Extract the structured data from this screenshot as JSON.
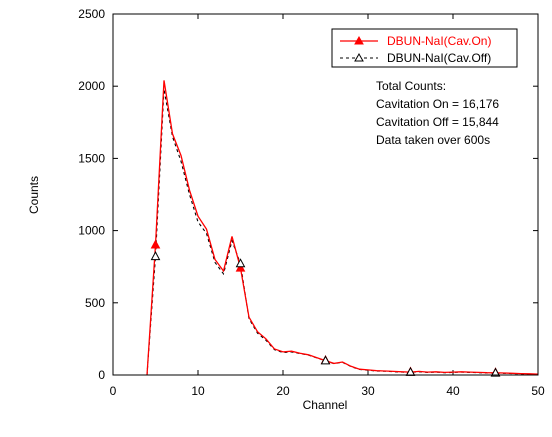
{
  "chart_data": {
    "type": "line",
    "title": "",
    "xlabel": "Channel",
    "ylabel": "Counts",
    "xlim": [
      0,
      50
    ],
    "ylim": [
      0,
      2500
    ],
    "xticks": [
      "0",
      "10",
      "20",
      "30",
      "40",
      "50"
    ],
    "yticks": [
      "0",
      "500",
      "1000",
      "1500",
      "2000",
      "2500"
    ],
    "grid": false,
    "legend_position": "top-right",
    "annotations": [
      "Total Counts:",
      "Cavitation On = 16,176",
      "Cavitation Off = 15,844",
      "Data taken over 600s"
    ],
    "series": [
      {
        "name": "DBUN-NaI(Cav.On)",
        "color": "#ff0000",
        "style": "solid",
        "marker": "filled-triangle",
        "marker_x": [
          5,
          15,
          25,
          35,
          45
        ],
        "x": [
          4,
          5,
          6,
          7,
          8,
          9,
          10,
          11,
          12,
          13,
          14,
          15,
          16,
          17,
          18,
          19,
          20,
          21,
          22,
          23,
          24,
          25,
          26,
          27,
          28,
          29,
          30,
          31,
          32,
          33,
          34,
          35,
          36,
          37,
          38,
          39,
          40,
          41,
          42,
          43,
          44,
          45,
          46,
          47,
          48,
          49,
          50
        ],
        "values": [
          0,
          900,
          2040,
          1670,
          1520,
          1280,
          1100,
          1010,
          800,
          720,
          960,
          740,
          400,
          300,
          250,
          180,
          160,
          165,
          150,
          140,
          120,
          100,
          80,
          90,
          60,
          40,
          35,
          30,
          28,
          25,
          22,
          20,
          25,
          20,
          22,
          18,
          20,
          22,
          20,
          18,
          16,
          15,
          14,
          12,
          10,
          8,
          6
        ]
      },
      {
        "name": "DBUN-NaI(Cav.Off)",
        "color": "#000000",
        "style": "dashed",
        "marker": "open-triangle",
        "marker_x": [
          5,
          15,
          25,
          35,
          45
        ],
        "x": [
          4,
          5,
          6,
          7,
          8,
          9,
          10,
          11,
          12,
          13,
          14,
          15,
          16,
          17,
          18,
          19,
          20,
          21,
          22,
          23,
          24,
          25,
          26,
          27,
          28,
          29,
          30,
          31,
          32,
          33,
          34,
          35,
          36,
          37,
          38,
          39,
          40,
          41,
          42,
          43,
          44,
          45,
          46,
          47,
          48,
          49,
          50
        ],
        "values": [
          0,
          820,
          1980,
          1650,
          1480,
          1250,
          1060,
          980,
          780,
          700,
          930,
          770,
          390,
          290,
          240,
          175,
          155,
          160,
          148,
          138,
          118,
          98,
          78,
          88,
          58,
          38,
          33,
          28,
          26,
          23,
          20,
          18,
          22,
          18,
          20,
          16,
          18,
          20,
          18,
          16,
          14,
          13,
          12,
          10,
          8,
          6,
          5
        ]
      }
    ]
  }
}
